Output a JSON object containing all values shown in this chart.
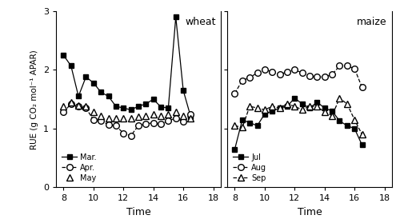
{
  "wheat": {
    "time": [
      8,
      8.5,
      9,
      9.5,
      10,
      10.5,
      11,
      11.5,
      12,
      12.5,
      13,
      13.5,
      14,
      14.5,
      15,
      15.5,
      16,
      16.5,
      17
    ],
    "mar": [
      2.25,
      2.07,
      1.55,
      1.88,
      1.78,
      1.62,
      1.55,
      1.38,
      1.35,
      1.32,
      1.38,
      1.42,
      1.5,
      1.37,
      1.35,
      2.9,
      1.65,
      1.2,
      null
    ],
    "apr": [
      1.28,
      1.42,
      1.38,
      1.35,
      1.15,
      1.13,
      1.07,
      1.05,
      0.92,
      0.88,
      1.05,
      1.08,
      1.1,
      1.08,
      1.13,
      1.18,
      1.12,
      1.25,
      null
    ],
    "may": [
      1.38,
      1.45,
      1.4,
      1.38,
      1.28,
      1.22,
      1.18,
      1.17,
      1.18,
      1.18,
      1.2,
      1.22,
      1.25,
      1.22,
      1.25,
      1.28,
      1.22,
      1.18,
      null
    ]
  },
  "maize": {
    "time": [
      8,
      8.5,
      9,
      9.5,
      10,
      10.5,
      11,
      11.5,
      12,
      12.5,
      13,
      13.5,
      14,
      14.5,
      15,
      15.5,
      16,
      16.5,
      17
    ],
    "jul": [
      0.65,
      1.15,
      1.1,
      1.05,
      1.25,
      1.3,
      1.35,
      1.38,
      1.52,
      1.42,
      1.35,
      1.45,
      1.35,
      1.3,
      1.13,
      1.05,
      1.0,
      0.72,
      null
    ],
    "aug": [
      1.6,
      1.82,
      1.87,
      1.95,
      2.0,
      1.97,
      1.92,
      1.97,
      2.0,
      1.95,
      1.9,
      1.88,
      1.88,
      1.92,
      2.07,
      2.07,
      2.02,
      1.7,
      null
    ],
    "sep": [
      1.05,
      1.02,
      1.38,
      1.35,
      1.32,
      1.38,
      1.35,
      1.42,
      1.38,
      1.32,
      1.38,
      1.38,
      1.28,
      1.22,
      1.52,
      1.42,
      1.15,
      0.9,
      null
    ]
  },
  "ylim": [
    0,
    3
  ],
  "yticks": [
    0,
    1,
    2,
    3
  ],
  "xlim": [
    7.5,
    18.5
  ],
  "xticks": [
    8,
    10,
    12,
    14,
    16,
    18
  ],
  "xlabel": "Time",
  "ylabel": "RUE (g CO₂ mol⁻¹ APAR)",
  "wheat_label": "wheat",
  "maize_label": "maize",
  "mar_color": "#555555",
  "apr_color": "#888888",
  "may_color": "#aaaaaa"
}
